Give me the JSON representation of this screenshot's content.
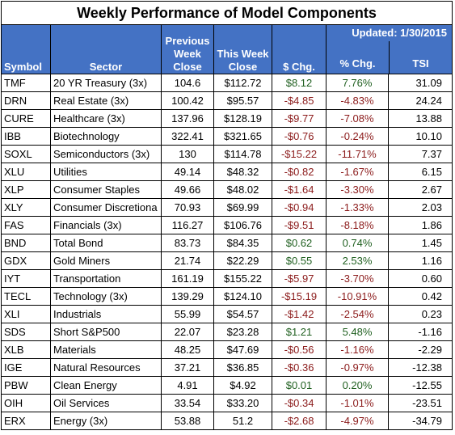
{
  "title": "Weekly Performance of Model Components",
  "updated": "Updated:  1/30/2015",
  "headers": {
    "symbol": "Symbol",
    "sector": "Sector",
    "prev_close": "Previous Week Close",
    "this_close": "This Week Close",
    "dollar_chg": "$ Chg.",
    "pct_chg": "% Chg.",
    "tsi": "TSI"
  },
  "rows": [
    {
      "symbol": "TMF",
      "sector": "20 YR Treasury  (3x)",
      "prev": "104.6",
      "this": "$112.72",
      "dchg": "$8.12",
      "pchg": "7.76%",
      "tsi": "31.09"
    },
    {
      "symbol": "DRN",
      "sector": "Real Estate  (3x)",
      "prev": "100.42",
      "this": "$95.57",
      "dchg": "-$4.85",
      "pchg": "-4.83%",
      "tsi": "24.24"
    },
    {
      "symbol": "CURE",
      "sector": "Healthcare  (3x)",
      "prev": "137.96",
      "this": "$128.19",
      "dchg": "-$9.77",
      "pchg": "-7.08%",
      "tsi": "13.88"
    },
    {
      "symbol": "IBB",
      "sector": "Biotechnology",
      "prev": "322.41",
      "this": "$321.65",
      "dchg": "-$0.76",
      "pchg": "-0.24%",
      "tsi": "10.10"
    },
    {
      "symbol": "SOXL",
      "sector": "Semiconductors  (3x)",
      "prev": "130",
      "this": "$114.78",
      "dchg": "-$15.22",
      "pchg": "-11.71%",
      "tsi": "7.37"
    },
    {
      "symbol": "XLU",
      "sector": "Utilities",
      "prev": "49.14",
      "this": "$48.32",
      "dchg": "-$0.82",
      "pchg": "-1.67%",
      "tsi": "6.15"
    },
    {
      "symbol": "XLP",
      "sector": "Consumer Staples",
      "prev": "49.66",
      "this": "$48.02",
      "dchg": "-$1.64",
      "pchg": "-3.30%",
      "tsi": "2.67"
    },
    {
      "symbol": "XLY",
      "sector": "Consumer Discretiona",
      "prev": "70.93",
      "this": "$69.99",
      "dchg": "-$0.94",
      "pchg": "-1.33%",
      "tsi": "2.03"
    },
    {
      "symbol": "FAS",
      "sector": "Financials  (3x)",
      "prev": "116.27",
      "this": "$106.76",
      "dchg": "-$9.51",
      "pchg": "-8.18%",
      "tsi": "1.86"
    },
    {
      "symbol": "BND",
      "sector": "Total Bond",
      "prev": "83.73",
      "this": "$84.35",
      "dchg": "$0.62",
      "pchg": "0.74%",
      "tsi": "1.45"
    },
    {
      "symbol": "GDX",
      "sector": "Gold Miners",
      "prev": "21.74",
      "this": "$22.29",
      "dchg": "$0.55",
      "pchg": "2.53%",
      "tsi": "1.16"
    },
    {
      "symbol": "IYT",
      "sector": "Transportation",
      "prev": "161.19",
      "this": "$155.22",
      "dchg": "-$5.97",
      "pchg": "-3.70%",
      "tsi": "0.60"
    },
    {
      "symbol": "TECL",
      "sector": "Technology  (3x)",
      "prev": "139.29",
      "this": "$124.10",
      "dchg": "-$15.19",
      "pchg": "-10.91%",
      "tsi": "0.42"
    },
    {
      "symbol": "XLI",
      "sector": "Industrials",
      "prev": "55.99",
      "this": "$54.57",
      "dchg": "-$1.42",
      "pchg": "-2.54%",
      "tsi": "0.23"
    },
    {
      "symbol": "SDS",
      "sector": "Short S&P500",
      "prev": "22.07",
      "this": "$23.28",
      "dchg": "$1.21",
      "pchg": "5.48%",
      "tsi": "-1.16"
    },
    {
      "symbol": "XLB",
      "sector": "Materials",
      "prev": "48.25",
      "this": "$47.69",
      "dchg": "-$0.56",
      "pchg": "-1.16%",
      "tsi": "-2.29"
    },
    {
      "symbol": "IGE",
      "sector": "Natural Resources",
      "prev": "37.21",
      "this": "$36.85",
      "dchg": "-$0.36",
      "pchg": "-0.97%",
      "tsi": "-12.38"
    },
    {
      "symbol": "PBW",
      "sector": "Clean Energy",
      "prev": "4.91",
      "this": "$4.92",
      "dchg": "$0.01",
      "pchg": "0.20%",
      "tsi": "-12.55"
    },
    {
      "symbol": "OIH",
      "sector": "Oil Services",
      "prev": "33.54",
      "this": "$33.20",
      "dchg": "-$0.34",
      "pchg": "-1.01%",
      "tsi": "-23.51"
    },
    {
      "symbol": "ERX",
      "sector": "Energy  (3x)",
      "prev": "53.88",
      "this": "51.2",
      "dchg": "-$2.68",
      "pchg": "-4.97%",
      "tsi": "-34.79"
    }
  ],
  "colors": {
    "header_bg": "#4472c4",
    "header_text": "#ffffff",
    "negative_text": "#8b1a1a",
    "positive_text": "#1f5f1f"
  }
}
